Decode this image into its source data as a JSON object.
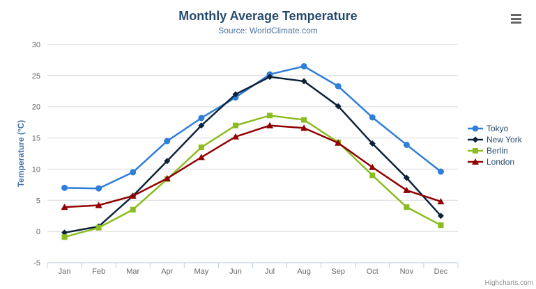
{
  "credit": {
    "label": "Highcharts.com"
  },
  "icons": {
    "export_menu": "hamburger-menu-icon"
  },
  "colors": {
    "title": "#274b6d",
    "subtitle": "#4d759e",
    "axis_title": "#4572a7",
    "tick_label": "#666666",
    "grid_line": "#d8d8d8",
    "axis_line": "#c0d0e0",
    "legend_text": "#274b6d",
    "credit_text": "#909090",
    "menu_icon": "#666666"
  },
  "chart_data": {
    "type": "line",
    "title": "Monthly Average Temperature",
    "subtitle": "Source: WorldClimate.com",
    "xlabel": "",
    "ylabel": "Temperature (°C)",
    "categories": [
      "Jan",
      "Feb",
      "Mar",
      "Apr",
      "May",
      "Jun",
      "Jul",
      "Aug",
      "Sep",
      "Oct",
      "Nov",
      "Dec"
    ],
    "yticks": [
      -5,
      0,
      5,
      10,
      15,
      20,
      25,
      30
    ],
    "ylim": [
      -5,
      30
    ],
    "grid": true,
    "legend_position": "right",
    "series": [
      {
        "name": "Tokyo",
        "color": "#2f7ed8",
        "symbol": "circle",
        "values": [
          7.0,
          6.9,
          9.5,
          14.5,
          18.2,
          21.5,
          25.2,
          26.5,
          23.3,
          18.3,
          13.9,
          9.6
        ]
      },
      {
        "name": "New York",
        "color": "#0d233a",
        "symbol": "diamond",
        "values": [
          -0.2,
          0.8,
          5.7,
          11.3,
          17.0,
          22.0,
          24.8,
          24.1,
          20.1,
          14.1,
          8.6,
          2.5
        ]
      },
      {
        "name": "Berlin",
        "color": "#8bbc21",
        "symbol": "square",
        "values": [
          -0.9,
          0.6,
          3.5,
          8.4,
          13.5,
          17.0,
          18.6,
          17.9,
          14.3,
          9.0,
          3.9,
          1.0
        ]
      },
      {
        "name": "London",
        "color": "#910000",
        "symbol": "triangle",
        "values": [
          3.9,
          4.2,
          5.7,
          8.5,
          11.9,
          15.2,
          17.0,
          16.6,
          14.2,
          10.3,
          6.6,
          4.8
        ]
      }
    ]
  }
}
